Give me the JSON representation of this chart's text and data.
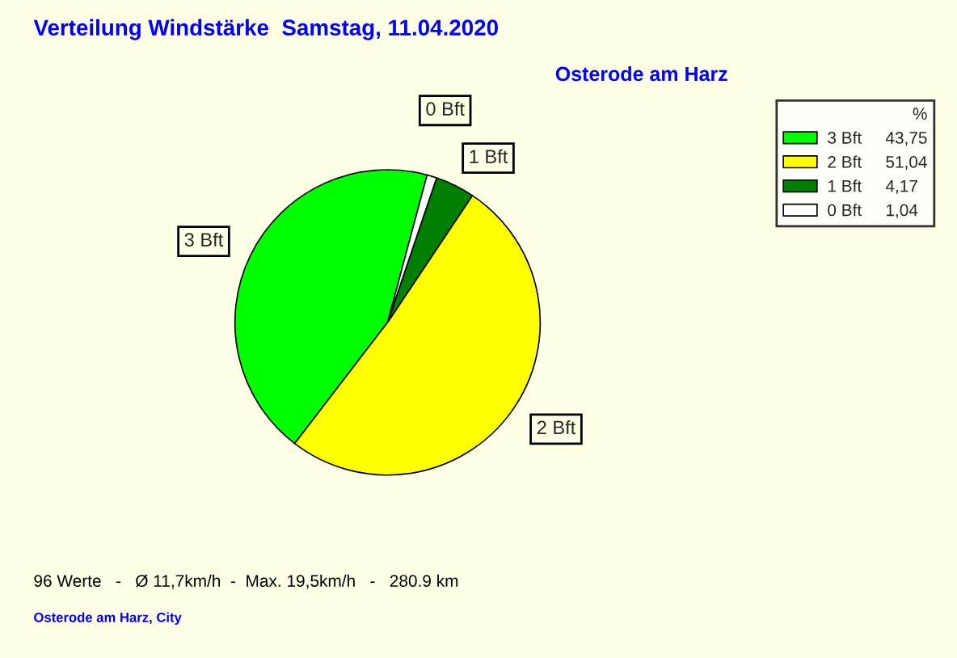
{
  "chart_data": {
    "type": "pie",
    "title": "Verteilung Windstärke  Samstag, 11.04.2020",
    "subtitle": "Osterode am Harz",
    "categories": [
      "3 Bft",
      "2 Bft",
      "1 Bft",
      "0 Bft"
    ],
    "values": [
      43.75,
      51.04,
      4.17,
      1.04
    ],
    "value_labels": [
      "43,75",
      "51,04",
      "4,17",
      "1,04"
    ],
    "colors": [
      "#00ff00",
      "#ffff00",
      "#008000",
      "#ffffff"
    ],
    "legend": "top right",
    "legend_title": "%",
    "annotations": [
      "96 Werte   -   Ø 11,7km/h  -  Max. 19,5km/h   -   280.9 km",
      "Osterode am Harz, City"
    ]
  }
}
